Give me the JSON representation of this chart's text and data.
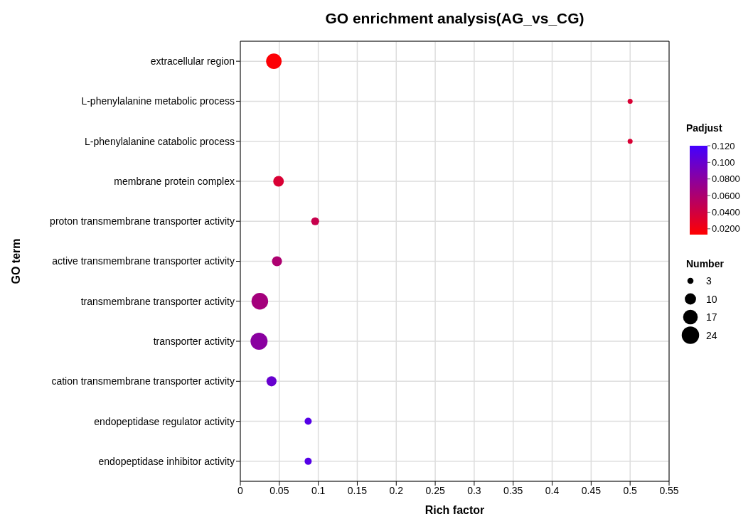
{
  "chart_data": {
    "type": "bubble",
    "title": "GO enrichment analysis(AG_vs_CG)",
    "xlabel": "Rich factor",
    "ylabel": "GO term",
    "categories": [
      "extracellular region",
      "L-phenylalanine metabolic process",
      "L-phenylalanine catabolic process",
      "membrane protein complex",
      "proton transmembrane transporter activity",
      "active transmembrane transporter activity",
      "transmembrane transporter activity",
      "transporter activity",
      "cation transmembrane transporter activity",
      "endopeptidase regulator activity",
      "endopeptidase inhibitor activity"
    ],
    "orientation": "horizontal",
    "values": [
      0.043,
      0.5,
      0.5,
      0.049,
      0.096,
      0.047,
      0.025,
      0.024,
      0.04,
      0.087,
      0.087
    ],
    "sizes": [
      19,
      2,
      2,
      9,
      5,
      8,
      22,
      23,
      8,
      4,
      4
    ],
    "cvalues": [
      0.015,
      0.035,
      0.035,
      0.035,
      0.045,
      0.06,
      0.065,
      0.08,
      0.1,
      0.11,
      0.11
    ],
    "size_legend": [
      3,
      10,
      17,
      24
    ],
    "legend_title": "Number",
    "clabel": "Padjust",
    "colors": [
      "#fc0005",
      "#d90034",
      "#d90034",
      "#d90034",
      "#c7004c",
      "#ad0070",
      "#a4007c",
      "#8a00a0",
      "#6700cf",
      "#5500e7",
      "#5500e7"
    ],
    "clim": [
      0.013,
      0.12
    ],
    "cticks": [
      {
        "value": 0.02,
        "label": "0.0200"
      },
      {
        "value": 0.04,
        "label": "0.0400"
      },
      {
        "value": 0.06,
        "label": "0.0600"
      },
      {
        "value": 0.08,
        "label": "0.0800"
      },
      {
        "value": 0.1,
        "label": "0.100"
      },
      {
        "value": 0.12,
        "label": "0.120"
      }
    ],
    "xlim": [
      0,
      0.55
    ],
    "xticks": [
      0,
      0.05,
      0.1,
      0.15,
      0.2,
      0.25,
      0.3,
      0.35,
      0.4,
      0.45,
      0.5,
      0.55
    ],
    "grid": true
  }
}
